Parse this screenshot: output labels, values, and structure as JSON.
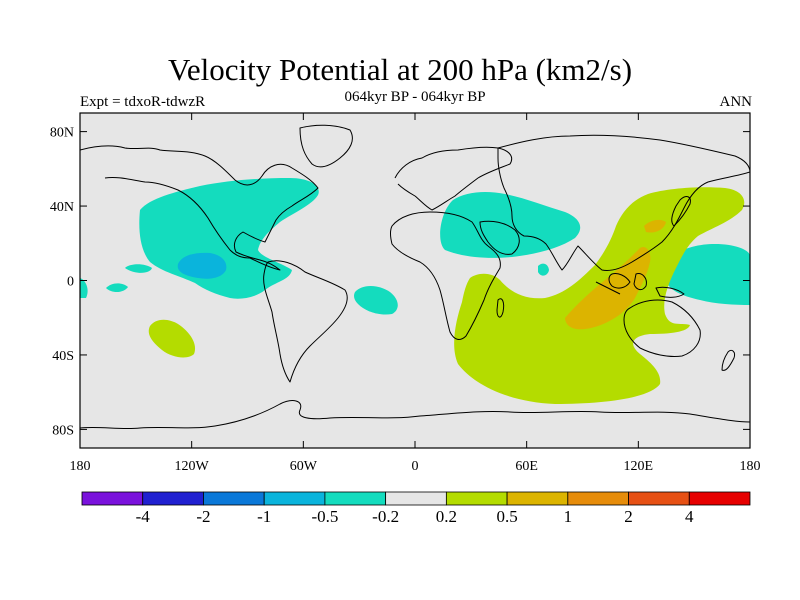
{
  "title": "Velocity Potential at 200 hPa (km2/s)",
  "subtitle": "064kyr BP - 064kyr BP",
  "left_label": "Expt = tdxoR-tdwzR",
  "right_label": "ANN",
  "map": {
    "projection": "cylindrical-equidistant",
    "lon_range": [
      -180,
      180
    ],
    "lat_range": [
      -90,
      90
    ],
    "lon_ticks": [
      {
        "value": -180,
        "label": "180"
      },
      {
        "value": -120,
        "label": "120W"
      },
      {
        "value": -60,
        "label": "60W"
      },
      {
        "value": 0,
        "label": "0"
      },
      {
        "value": 60,
        "label": "60E"
      },
      {
        "value": 120,
        "label": "120E"
      },
      {
        "value": 180,
        "label": "180"
      }
    ],
    "lat_ticks": [
      {
        "value": 80,
        "label": "80N"
      },
      {
        "value": 40,
        "label": "40N"
      },
      {
        "value": 0,
        "label": "0"
      },
      {
        "value": -40,
        "label": "40S"
      },
      {
        "value": -80,
        "label": "80S"
      }
    ],
    "background_color": "#e6e6e6",
    "coastline_color": "#000000"
  },
  "colorbar": {
    "colors": [
      "#7a12dc",
      "#2020d0",
      "#0a78d8",
      "#0ab4dc",
      "#14dcbe",
      "#e6e6e6",
      "#b4dc00",
      "#dcb400",
      "#e68c0a",
      "#e65014",
      "#e60000"
    ],
    "labels": [
      "-4",
      "-2",
      "-1",
      "-0.5",
      "-0.2",
      "0.2",
      "0.5",
      "1",
      "2",
      "4"
    ]
  },
  "regions": [
    {
      "name": "north-atlantic-negative",
      "level": -0.2,
      "color": "#14dcbe"
    },
    {
      "name": "east-pacific-negative-core",
      "level": -0.5,
      "color": "#0ab4dc"
    },
    {
      "name": "middle-east-negative",
      "level": -0.2,
      "color": "#14dcbe"
    },
    {
      "name": "south-atlantic-negative",
      "level": -0.2,
      "color": "#14dcbe"
    },
    {
      "name": "west-pacific-negative",
      "level": -0.2,
      "color": "#14dcbe"
    },
    {
      "name": "indian-ocean-positive",
      "level": 0.2,
      "color": "#b4dc00"
    },
    {
      "name": "maritime-continent-positive-core",
      "level": 0.5,
      "color": "#dcb400"
    },
    {
      "name": "south-pacific-positive",
      "level": 0.2,
      "color": "#b4dc00"
    }
  ]
}
